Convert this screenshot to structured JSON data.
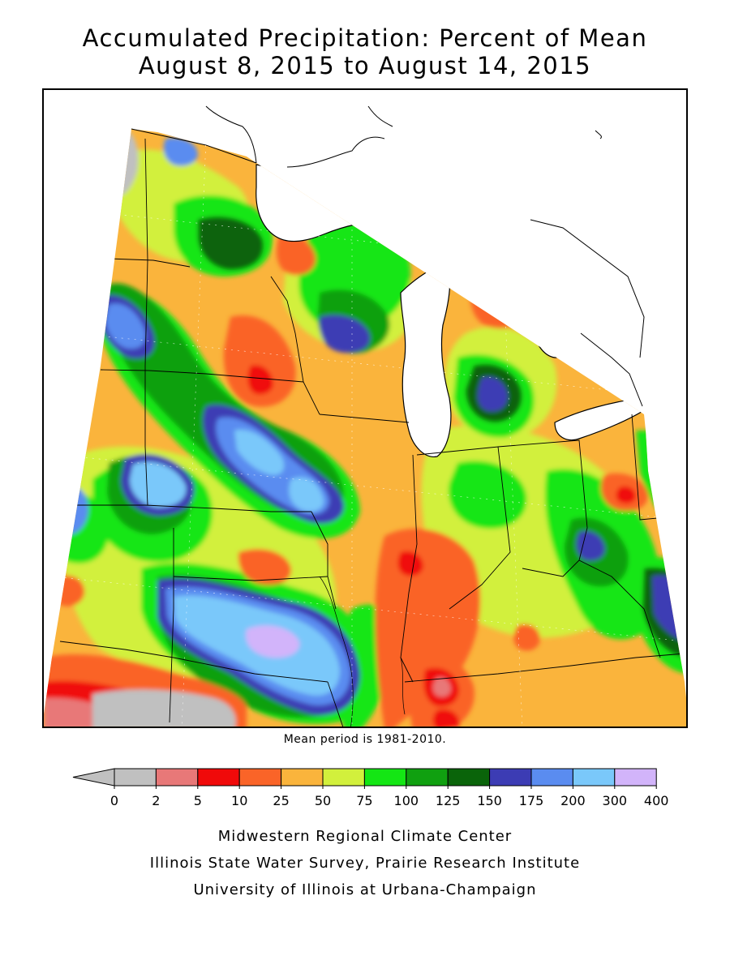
{
  "title": {
    "line1": "Accumulated Precipitation: Percent of Mean",
    "line2": "August 8, 2015 to August 14, 2015"
  },
  "map": {
    "note": "Mean period is 1981-2010.",
    "bins": [
      {
        "range": "<0",
        "color": "#c0c0c0"
      },
      {
        "range": "0-2",
        "color": "#c0c0c0"
      },
      {
        "range": "2-5",
        "color": "#e87878"
      },
      {
        "range": "5-10",
        "color": "#f00a0a"
      },
      {
        "range": "10-25",
        "color": "#fa6428"
      },
      {
        "range": "25-50",
        "color": "#fab43c"
      },
      {
        "range": "50-75",
        "color": "#d2f03c"
      },
      {
        "range": "75-100",
        "color": "#14e614"
      },
      {
        "range": "100-125",
        "color": "#10a010"
      },
      {
        "range": "125-150",
        "color": "#0a640a"
      },
      {
        "range": "150-175",
        "color": "#3c3cb4"
      },
      {
        "range": "175-200",
        "color": "#5a8cf0"
      },
      {
        "range": "200-300",
        "color": "#7ac8fa"
      },
      {
        "range": "300-400",
        "color": "#d2b4fa"
      }
    ]
  },
  "legend": {
    "ticks": [
      "0",
      "2",
      "5",
      "10",
      "25",
      "50",
      "75",
      "100",
      "125",
      "150",
      "175",
      "200",
      "300",
      "400"
    ],
    "colors": [
      "#c0c0c0",
      "#e87878",
      "#f00a0a",
      "#fa6428",
      "#fab43c",
      "#d2f03c",
      "#14e614",
      "#10a010",
      "#0a640a",
      "#3c3cb4",
      "#5a8cf0",
      "#7ac8fa",
      "#d2b4fa"
    ],
    "below_color": "#c0c0c0"
  },
  "credits": {
    "line1": "Midwestern Regional Climate Center",
    "line2": "Illinois State Water Survey, Prairie Research Institute",
    "line3": "University of Illinois at Urbana-Champaign"
  }
}
